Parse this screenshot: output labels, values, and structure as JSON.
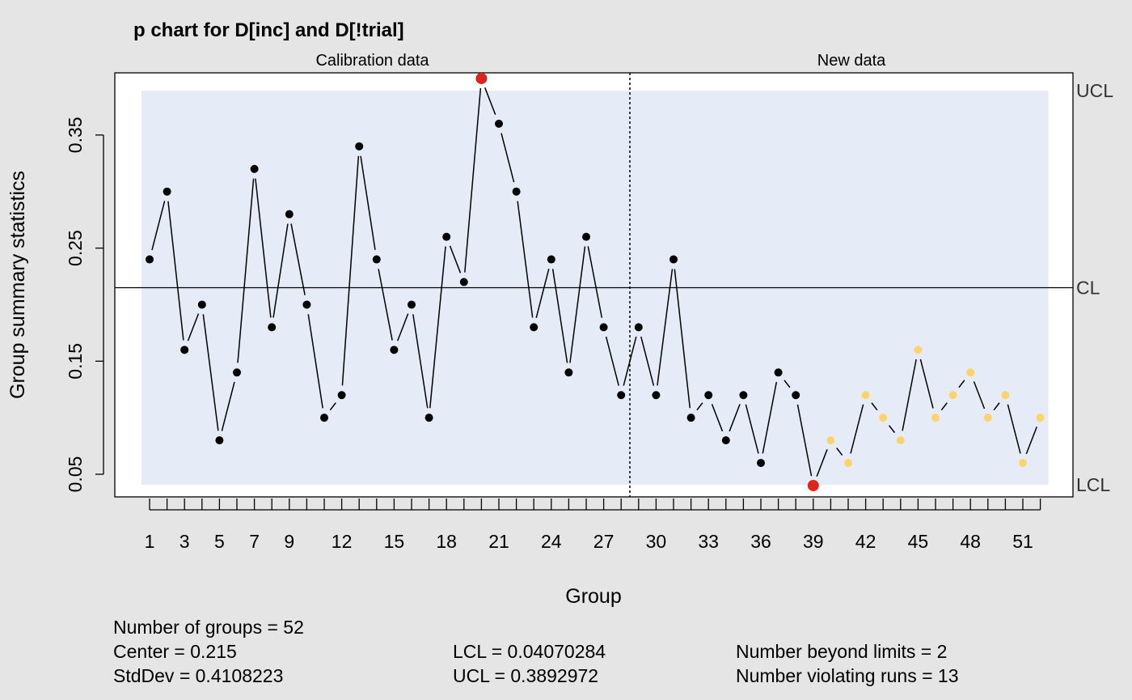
{
  "chart_data": {
    "type": "line",
    "title": "p chart for D[inc] and D[!trial]",
    "xlabel": "Group",
    "ylabel": "Group summary statistics",
    "section_labels": [
      "Calibration data",
      "New data"
    ],
    "calibration_groups": 28,
    "x": [
      1,
      2,
      3,
      4,
      5,
      6,
      7,
      8,
      9,
      10,
      11,
      12,
      13,
      14,
      15,
      16,
      17,
      18,
      19,
      20,
      21,
      22,
      23,
      24,
      25,
      26,
      27,
      28,
      29,
      30,
      31,
      32,
      33,
      34,
      35,
      36,
      37,
      38,
      39,
      40,
      41,
      42,
      43,
      44,
      45,
      46,
      47,
      48,
      49,
      50,
      51,
      52
    ],
    "values": [
      0.24,
      0.3,
      0.16,
      0.2,
      0.08,
      0.14,
      0.32,
      0.18,
      0.28,
      0.2,
      0.1,
      0.12,
      0.34,
      0.24,
      0.16,
      0.2,
      0.1,
      0.26,
      0.22,
      0.4,
      0.36,
      0.3,
      0.18,
      0.24,
      0.14,
      0.26,
      0.18,
      0.12,
      0.18,
      0.12,
      0.24,
      0.1,
      0.12,
      0.08,
      0.12,
      0.06,
      0.14,
      0.12,
      0.04,
      0.08,
      0.06,
      0.12,
      0.1,
      0.08,
      0.16,
      0.1,
      0.12,
      0.14,
      0.1,
      0.12,
      0.06,
      0.1
    ],
    "beyond_limits": [
      20,
      39
    ],
    "violating_runs": [
      40,
      41,
      42,
      43,
      44,
      45,
      46,
      47,
      48,
      49,
      50,
      51,
      52
    ],
    "center": 0.215,
    "lcl": 0.04070284,
    "ucl": 0.3892972,
    "limit_labels": {
      "ucl": "UCL",
      "cl": "CL",
      "lcl": "LCL"
    },
    "ylim": [
      0.03,
      0.405
    ],
    "yticks": [
      0.05,
      0.15,
      0.25,
      0.35
    ],
    "ytick_labels": [
      "0.05",
      "0.15",
      "0.25",
      "0.35"
    ],
    "xtick_labels": [
      1,
      3,
      5,
      7,
      9,
      12,
      15,
      18,
      21,
      24,
      27,
      30,
      33,
      36,
      39,
      42,
      45,
      48,
      51
    ],
    "colors": {
      "in_control": "#000000",
      "beyond_limits": "#e2231a",
      "violating_runs": "#fdd46b",
      "control_band": "#e6ecf7"
    }
  },
  "stats": {
    "n_groups": "Number of groups = 52",
    "center": "Center = 0.215",
    "stddev": "StdDev = 0.4108223",
    "lcl": "LCL = 0.04070284",
    "ucl": "UCL = 0.3892972",
    "beyond": "Number beyond limits = 2",
    "runs": "Number violating runs = 13"
  }
}
